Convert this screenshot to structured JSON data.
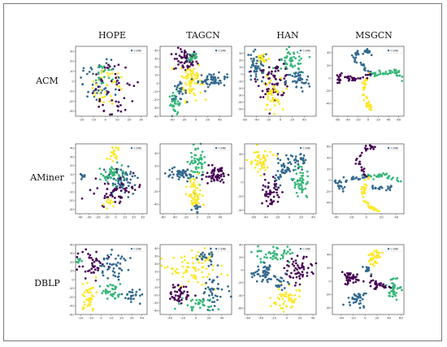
{
  "columns": [
    "HOPE",
    "TAGCN",
    "HAN",
    "MSGCN"
  ],
  "rows": [
    "ACM",
    "AMiner",
    "DBLP"
  ],
  "palette": [
    "#440154",
    "#31688e",
    "#35b779",
    "#fde725"
  ],
  "chart_data": [
    {
      "type": "scatter",
      "dataset": "ACM",
      "method": "HOPE",
      "legend": "t-SNE",
      "xlim": [
        -25,
        35
      ],
      "ylim": [
        -35,
        35
      ],
      "xticks": [
        -20,
        -10,
        0,
        10,
        20,
        30
      ],
      "yticks": [
        -30,
        -20,
        -10,
        0,
        10,
        20,
        30
      ],
      "layout": "radial",
      "clusters": [
        {
          "c": 1,
          "cx": -3,
          "cy": 10,
          "sx": 6,
          "sy": 6,
          "r": 18,
          "n": 45
        },
        {
          "c": 3,
          "cx": 2,
          "cy": 3,
          "sx": 5,
          "sy": 5,
          "r": 14,
          "n": 40
        },
        {
          "c": 2,
          "cx": -1,
          "cy": 14,
          "sx": 5,
          "sy": 5,
          "r": 8,
          "n": 20
        },
        {
          "c": 0,
          "cx": 8,
          "cy": 0,
          "sx": 8,
          "sy": 6,
          "r": 20,
          "n": 45
        }
      ]
    },
    {
      "type": "scatter",
      "dataset": "ACM",
      "method": "TAGCN",
      "legend": "t-SNE",
      "xlim": [
        -60,
        60
      ],
      "ylim": [
        -40,
        45
      ],
      "xticks": [
        -40,
        -20,
        0,
        20,
        40
      ],
      "yticks": [
        -40,
        -30,
        -20,
        -10,
        0,
        10,
        20,
        30,
        40
      ],
      "clusters": [
        {
          "c": 0,
          "cx": -18,
          "cy": 28,
          "sx": 10,
          "sy": 7,
          "n": 60
        },
        {
          "c": 3,
          "cx": -8,
          "cy": 4,
          "sx": 9,
          "sy": 12,
          "n": 80
        },
        {
          "c": 1,
          "cx": 28,
          "cy": 4,
          "sx": 12,
          "sy": 4,
          "n": 55
        },
        {
          "c": 2,
          "cx": -35,
          "cy": -25,
          "sx": 5,
          "sy": 7,
          "n": 35
        },
        {
          "c": 1,
          "cx": -28,
          "cy": -10,
          "sx": 6,
          "sy": 5,
          "n": 25
        },
        {
          "c": 2,
          "cx": -5,
          "cy": 32,
          "sx": 5,
          "sy": 4,
          "n": 20
        }
      ]
    },
    {
      "type": "scatter",
      "dataset": "ACM",
      "method": "HAN",
      "legend": "t-SNE",
      "xlim": [
        -60,
        60
      ],
      "ylim": [
        -60,
        40
      ],
      "xticks": [
        -60,
        -40,
        -20,
        0,
        20,
        40
      ],
      "yticks": [
        -50,
        -40,
        -30,
        -20,
        -10,
        0,
        10,
        20,
        30
      ],
      "clusters": [
        {
          "c": 1,
          "cx": -40,
          "cy": 10,
          "sx": 10,
          "sy": 12,
          "n": 55
        },
        {
          "c": 2,
          "cx": 20,
          "cy": 18,
          "sx": 12,
          "sy": 10,
          "n": 55
        },
        {
          "c": 0,
          "cx": -10,
          "cy": -8,
          "sx": 14,
          "sy": 12,
          "n": 70
        },
        {
          "c": 3,
          "cx": -15,
          "cy": -30,
          "sx": 8,
          "sy": 12,
          "n": 45
        },
        {
          "c": 1,
          "cx": 30,
          "cy": -10,
          "sx": 10,
          "sy": 8,
          "n": 40
        },
        {
          "c": 3,
          "cx": -30,
          "cy": 22,
          "sx": 6,
          "sy": 5,
          "n": 20
        }
      ]
    },
    {
      "type": "scatter",
      "dataset": "ACM",
      "method": "MSGCN",
      "legend": "t-SNE",
      "xlim": [
        -70,
        70
      ],
      "ylim": [
        -60,
        50
      ],
      "xticks": [
        -60,
        -40,
        -20,
        0,
        20,
        40,
        60
      ],
      "yticks": [
        -40,
        -20,
        0,
        20,
        40
      ],
      "layout": "arms",
      "arms": [
        {
          "c": 1,
          "pts": [
            [
              5,
              5
            ],
            [
              -10,
              20
            ],
            [
              -30,
              35
            ],
            [
              -15,
              45
            ],
            [
              5,
              40
            ]
          ],
          "n": 45
        },
        {
          "c": 2,
          "pts": [
            [
              5,
              5
            ],
            [
              30,
              8
            ],
            [
              55,
              12
            ],
            [
              65,
              0
            ]
          ],
          "n": 40
        },
        {
          "c": 3,
          "pts": [
            [
              5,
              5
            ],
            [
              -10,
              -10
            ],
            [
              -5,
              -35
            ],
            [
              5,
              -50
            ]
          ],
          "n": 45
        },
        {
          "c": 0,
          "pts": [
            [
              5,
              5
            ],
            [
              -30,
              -2
            ],
            [
              -55,
              5
            ],
            [
              -60,
              -5
            ]
          ],
          "n": 40
        }
      ]
    },
    {
      "type": "scatter",
      "dataset": "AMiner",
      "method": "HOPE",
      "legend": "t-SNE",
      "xlim": [
        -45,
        35
      ],
      "ylim": [
        -35,
        45
      ],
      "xticks": [
        -40,
        -30,
        -20,
        -10,
        0,
        10,
        20,
        30
      ],
      "yticks": [
        -30,
        -20,
        -10,
        0,
        10,
        20,
        30,
        40
      ],
      "clusters": [
        {
          "c": 2,
          "cx": -5,
          "cy": 10,
          "sx": 8,
          "sy": 6,
          "n": 55
        },
        {
          "c": 1,
          "cx": 8,
          "cy": 2,
          "sx": 8,
          "sy": 8,
          "n": 55
        },
        {
          "c": 0,
          "cx": 0,
          "cy": -10,
          "sx": 12,
          "sy": 10,
          "n": 55
        },
        {
          "c": 3,
          "cx": -2,
          "cy": 32,
          "sx": 3,
          "sy": 5,
          "n": 18
        },
        {
          "c": 1,
          "cx": -38,
          "cy": 8,
          "sx": 2,
          "sy": 2,
          "n": 8
        },
        {
          "c": 3,
          "cx": -8,
          "cy": -20,
          "sx": 4,
          "sy": 4,
          "n": 12
        }
      ]
    },
    {
      "type": "scatter",
      "dataset": "AMiner",
      "method": "TAGCN",
      "legend": "t-SNE",
      "xlim": [
        -65,
        60
      ],
      "ylim": [
        -55,
        55
      ],
      "xticks": [
        -60,
        -40,
        -20,
        0,
        20,
        40
      ],
      "yticks": [
        -40,
        -20,
        0,
        20,
        40
      ],
      "clusters": [
        {
          "c": 2,
          "cx": 0,
          "cy": 30,
          "sx": 6,
          "sy": 14,
          "n": 55
        },
        {
          "c": 1,
          "cx": -30,
          "cy": 8,
          "sx": 12,
          "sy": 5,
          "n": 50
        },
        {
          "c": 0,
          "cx": 32,
          "cy": 5,
          "sx": 10,
          "sy": 6,
          "n": 55
        },
        {
          "c": 3,
          "cx": -5,
          "cy": -25,
          "sx": 6,
          "sy": 14,
          "n": 55
        },
        {
          "c": 1,
          "cx": 0,
          "cy": -45,
          "sx": 4,
          "sy": 3,
          "n": 12
        }
      ]
    },
    {
      "type": "scatter",
      "dataset": "AMiner",
      "method": "HAN",
      "legend": "t-SNE",
      "xlim": [
        -75,
        45
      ],
      "ylim": [
        -45,
        55
      ],
      "xticks": [
        -60,
        -40,
        -20,
        0,
        20,
        40
      ],
      "yticks": [
        -40,
        -20,
        0,
        20,
        40
      ],
      "clusters": [
        {
          "c": 3,
          "cx": -50,
          "cy": 30,
          "sx": 10,
          "sy": 8,
          "n": 50
        },
        {
          "c": 1,
          "cx": -10,
          "cy": 18,
          "sx": 10,
          "sy": 10,
          "n": 50
        },
        {
          "c": 0,
          "cx": -30,
          "cy": -15,
          "sx": 7,
          "sy": 12,
          "n": 50
        },
        {
          "c": 2,
          "cx": 20,
          "cy": 0,
          "sx": 7,
          "sy": 12,
          "n": 50
        },
        {
          "c": 1,
          "cx": 15,
          "cy": 30,
          "sx": 8,
          "sy": 5,
          "n": 25
        }
      ]
    },
    {
      "type": "scatter",
      "dataset": "AMiner",
      "method": "MSGCN",
      "legend": "t-SNE",
      "xlim": [
        -45,
        50
      ],
      "ylim": [
        -60,
        65
      ],
      "xticks": [
        -40,
        -20,
        0,
        20,
        40
      ],
      "yticks": [
        -40,
        -20,
        0,
        20,
        40,
        60
      ],
      "layout": "arms",
      "arms": [
        {
          "c": 0,
          "pts": [
            [
              0,
              5
            ],
            [
              -10,
              30
            ],
            [
              -5,
              55
            ],
            [
              10,
              60
            ]
          ],
          "n": 40
        },
        {
          "c": 2,
          "pts": [
            [
              0,
              5
            ],
            [
              25,
              8
            ],
            [
              45,
              0
            ]
          ],
          "n": 35
        },
        {
          "c": 1,
          "pts": [
            [
              0,
              5
            ],
            [
              -20,
              2
            ],
            [
              -42,
              -5
            ],
            [
              -30,
              -15
            ]
          ],
          "n": 35
        },
        {
          "c": 3,
          "pts": [
            [
              0,
              5
            ],
            [
              -5,
              -25
            ],
            [
              5,
              -50
            ],
            [
              15,
              -55
            ]
          ],
          "n": 45
        },
        {
          "c": 1,
          "pts": [
            [
              5,
              -10
            ],
            [
              25,
              -15
            ],
            [
              35,
              -10
            ]
          ],
          "n": 20
        }
      ]
    },
    {
      "type": "scatter",
      "dataset": "DBLP",
      "method": "HOPE",
      "legend": "t-SNE",
      "xlim": [
        -25,
        45
      ],
      "ylim": [
        -40,
        40
      ],
      "xticks": [
        -20,
        -10,
        0,
        10,
        20,
        30,
        40
      ],
      "yticks": [
        -40,
        -30,
        -20,
        -10,
        0,
        10,
        20,
        30,
        40
      ],
      "clusters": [
        {
          "c": 0,
          "cx": -10,
          "cy": 20,
          "sx": 7,
          "sy": 8,
          "n": 45
        },
        {
          "c": 1,
          "cx": 12,
          "cy": 15,
          "sx": 7,
          "sy": 8,
          "n": 45
        },
        {
          "c": 2,
          "cx": 10,
          "cy": -12,
          "sx": 6,
          "sy": 6,
          "n": 35
        },
        {
          "c": 3,
          "cx": -12,
          "cy": -20,
          "sx": 5,
          "sy": 9,
          "n": 40
        },
        {
          "c": 1,
          "cx": 30,
          "cy": -18,
          "sx": 7,
          "sy": 5,
          "n": 25
        },
        {
          "c": 2,
          "cx": -22,
          "cy": 22,
          "sx": 3,
          "sy": 3,
          "n": 10
        }
      ]
    },
    {
      "type": "scatter",
      "dataset": "DBLP",
      "method": "TAGCN",
      "legend": "t-SNE",
      "xlim": [
        -55,
        55
      ],
      "ylim": [
        -45,
        45
      ],
      "xticks": [
        -40,
        -20,
        0,
        20,
        40
      ],
      "yticks": [
        -40,
        -30,
        -20,
        -10,
        0,
        10,
        20,
        30,
        40
      ],
      "clusters": [
        {
          "c": 3,
          "cx": -5,
          "cy": 15,
          "sx": 18,
          "sy": 14,
          "n": 80
        },
        {
          "c": 0,
          "cx": -25,
          "cy": -18,
          "sx": 10,
          "sy": 6,
          "n": 45
        },
        {
          "c": 1,
          "cx": 25,
          "cy": -20,
          "sx": 10,
          "sy": 10,
          "n": 45
        },
        {
          "c": 2,
          "cx": 0,
          "cy": -32,
          "sx": 12,
          "sy": 5,
          "n": 30
        },
        {
          "c": 1,
          "cx": 15,
          "cy": 30,
          "sx": 8,
          "sy": 5,
          "n": 25
        }
      ]
    },
    {
      "type": "scatter",
      "dataset": "DBLP",
      "method": "HAN",
      "legend": "t-SNE",
      "xlim": [
        -65,
        45
      ],
      "ylim": [
        -70,
        40
      ],
      "xticks": [
        -60,
        -40,
        -20,
        0,
        20,
        40
      ],
      "yticks": [
        -60,
        -40,
        -20,
        0,
        20,
        40
      ],
      "clusters": [
        {
          "c": 2,
          "cx": -15,
          "cy": 25,
          "sx": 14,
          "sy": 7,
          "n": 50
        },
        {
          "c": 1,
          "cx": -35,
          "cy": -5,
          "sx": 10,
          "sy": 8,
          "n": 50
        },
        {
          "c": 0,
          "cx": 20,
          "cy": 0,
          "sx": 10,
          "sy": 12,
          "n": 55
        },
        {
          "c": 3,
          "cx": 0,
          "cy": -45,
          "sx": 10,
          "sy": 10,
          "n": 50
        },
        {
          "c": 1,
          "cx": -10,
          "cy": -22,
          "sx": 6,
          "sy": 5,
          "n": 20
        }
      ]
    },
    {
      "type": "scatter",
      "dataset": "DBLP",
      "method": "MSGCN",
      "legend": "t-SNE",
      "xlim": [
        -55,
        65
      ],
      "ylim": [
        -50,
        55
      ],
      "xticks": [
        -40,
        -20,
        0,
        20,
        40,
        60
      ],
      "yticks": [
        -40,
        -20,
        0,
        20,
        40
      ],
      "clusters": [
        {
          "c": 3,
          "cx": 15,
          "cy": 35,
          "sx": 6,
          "sy": 6,
          "n": 35
        },
        {
          "c": 2,
          "cx": 45,
          "cy": -10,
          "sx": 7,
          "sy": 8,
          "n": 40
        },
        {
          "c": 0,
          "cx": -25,
          "cy": 5,
          "sx": 8,
          "sy": 5,
          "n": 40
        },
        {
          "c": 1,
          "cx": -15,
          "cy": -25,
          "sx": 7,
          "sy": 6,
          "n": 35
        },
        {
          "c": 0,
          "cx": 20,
          "cy": -5,
          "sx": 10,
          "sy": 4,
          "n": 30
        },
        {
          "c": 1,
          "cx": 5,
          "cy": 18,
          "sx": 4,
          "sy": 3,
          "n": 12
        }
      ]
    }
  ]
}
